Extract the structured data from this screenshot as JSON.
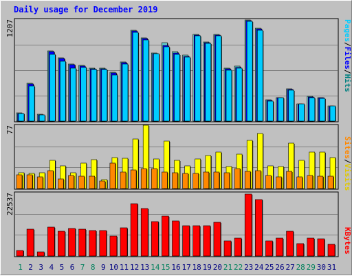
{
  "title": "Daily usage for December 2019",
  "days": [
    "1",
    "2",
    "3",
    "4",
    "5",
    "6",
    "7",
    "8",
    "9",
    "10",
    "11",
    "12",
    "13",
    "14",
    "15",
    "16",
    "17",
    "18",
    "19",
    "20",
    "21",
    "22",
    "23",
    "24",
    "25",
    "26",
    "27",
    "28",
    "29",
    "30",
    "31"
  ],
  "weekend_days": [
    "1",
    "7",
    "8",
    "14",
    "15",
    "21",
    "22",
    "28",
    "29"
  ],
  "colors": {
    "background": "#c0c0c0",
    "title": "#0000ff",
    "hits": "#66cccc",
    "pages": "#00ccff",
    "files": "#0000ff",
    "visits": "#ffff00",
    "sites": "#ff8800",
    "kbytes": "#ff0000",
    "weekday_label": "#000080",
    "weekend_label": "#00805c"
  },
  "legend": {
    "top": [
      "Pages",
      "/",
      "Files",
      "/",
      "Hits"
    ],
    "middle": [
      "Sites",
      "/",
      "Visits"
    ],
    "bottom": [
      "KBytes"
    ]
  },
  "chart_data": [
    {
      "type": "bar",
      "panel": "top",
      "ymax_label": "1207",
      "ylim": [
        0,
        1207
      ],
      "series": [
        {
          "name": "Hits",
          "values": [
            100,
            450,
            80,
            830,
            750,
            680,
            660,
            630,
            630,
            580,
            700,
            1080,
            990,
            810,
            930,
            820,
            780,
            1030,
            940,
            1030,
            630,
            650,
            1200,
            1100,
            250,
            280,
            380,
            200,
            290,
            280,
            180
          ]
        },
        {
          "name": "Files",
          "values": [
            90,
            440,
            75,
            820,
            740,
            670,
            650,
            620,
            620,
            570,
            690,
            1070,
            980,
            800,
            900,
            810,
            770,
            1020,
            930,
            1020,
            620,
            640,
            1190,
            1090,
            245,
            275,
            375,
            195,
            285,
            275,
            175
          ]
        },
        {
          "name": "Pages",
          "values": [
            90,
            420,
            70,
            790,
            710,
            630,
            640,
            610,
            610,
            550,
            680,
            1050,
            960,
            800,
            880,
            790,
            760,
            1010,
            920,
            1010,
            600,
            630,
            1180,
            1080,
            240,
            280,
            370,
            200,
            280,
            270,
            180
          ]
        }
      ]
    },
    {
      "type": "bar",
      "panel": "middle",
      "ymax_label": "77",
      "ylim": [
        0,
        77
      ],
      "series": [
        {
          "name": "Visits",
          "values": [
            19,
            18,
            19,
            34,
            28,
            19,
            31,
            35,
            11,
            38,
            37,
            60,
            77,
            36,
            58,
            34,
            28,
            36,
            40,
            44,
            27,
            42,
            59,
            67,
            28,
            27,
            55,
            34,
            44,
            44,
            38
          ]
        },
        {
          "name": "Sites",
          "values": [
            17,
            17,
            14,
            22,
            12,
            16,
            15,
            15,
            9,
            31,
            20,
            23,
            24,
            24,
            20,
            19,
            18,
            18,
            20,
            20,
            19,
            24,
            21,
            22,
            16,
            14,
            21,
            14,
            16,
            15,
            15
          ]
        }
      ]
    },
    {
      "type": "bar",
      "panel": "bottom",
      "ymax_label": "22537",
      "ylim": [
        0,
        22537
      ],
      "series": [
        {
          "name": "KBytes",
          "values": [
            2000,
            9500,
            1500,
            10200,
            8800,
            9800,
            9600,
            9000,
            9000,
            7200,
            10100,
            18700,
            16800,
            12200,
            14200,
            12600,
            10700,
            10700,
            10700,
            12100,
            5400,
            6400,
            22000,
            20000,
            5300,
            6400,
            8700,
            4300,
            6300,
            6100,
            4100
          ]
        }
      ]
    }
  ]
}
